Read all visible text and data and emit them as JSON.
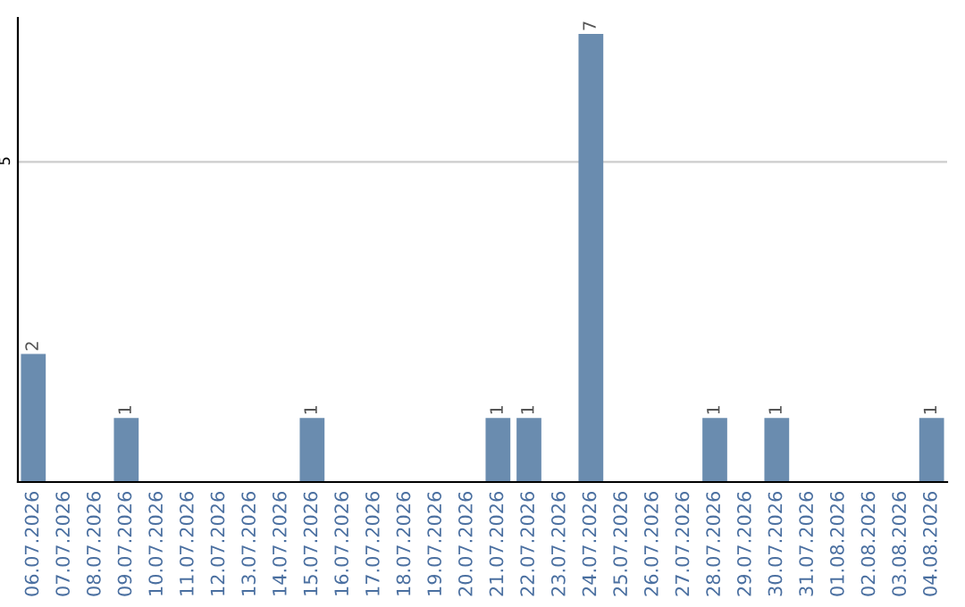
{
  "chart_data": {
    "type": "bar",
    "categories": [
      "06.07.2026",
      "07.07.2026",
      "08.07.2026",
      "09.07.2026",
      "10.07.2026",
      "11.07.2026",
      "12.07.2026",
      "13.07.2026",
      "14.07.2026",
      "15.07.2026",
      "16.07.2026",
      "17.07.2026",
      "18.07.2026",
      "19.07.2026",
      "20.07.2026",
      "21.07.2026",
      "22.07.2026",
      "23.07.2026",
      "24.07.2026",
      "25.07.2026",
      "26.07.2026",
      "27.07.2026",
      "28.07.2026",
      "29.07.2026",
      "30.07.2026",
      "31.07.2026",
      "01.08.2026",
      "02.08.2026",
      "03.08.2026",
      "04.08.2026"
    ],
    "values": [
      2,
      0,
      0,
      1,
      0,
      0,
      0,
      0,
      0,
      1,
      0,
      0,
      0,
      0,
      0,
      1,
      1,
      0,
      7,
      0,
      0,
      0,
      1,
      0,
      1,
      0,
      0,
      0,
      0,
      1
    ],
    "value_labels": [
      "2",
      null,
      null,
      "1",
      null,
      null,
      null,
      null,
      null,
      "1",
      null,
      null,
      null,
      null,
      null,
      "1",
      "1",
      null,
      "7",
      null,
      null,
      null,
      "1",
      null,
      "1",
      null,
      null,
      null,
      null,
      "1"
    ],
    "color": "#6a8caf",
    "ylim": [
      0,
      7.25
    ],
    "yticks": [
      5
    ],
    "grid": "y"
  }
}
